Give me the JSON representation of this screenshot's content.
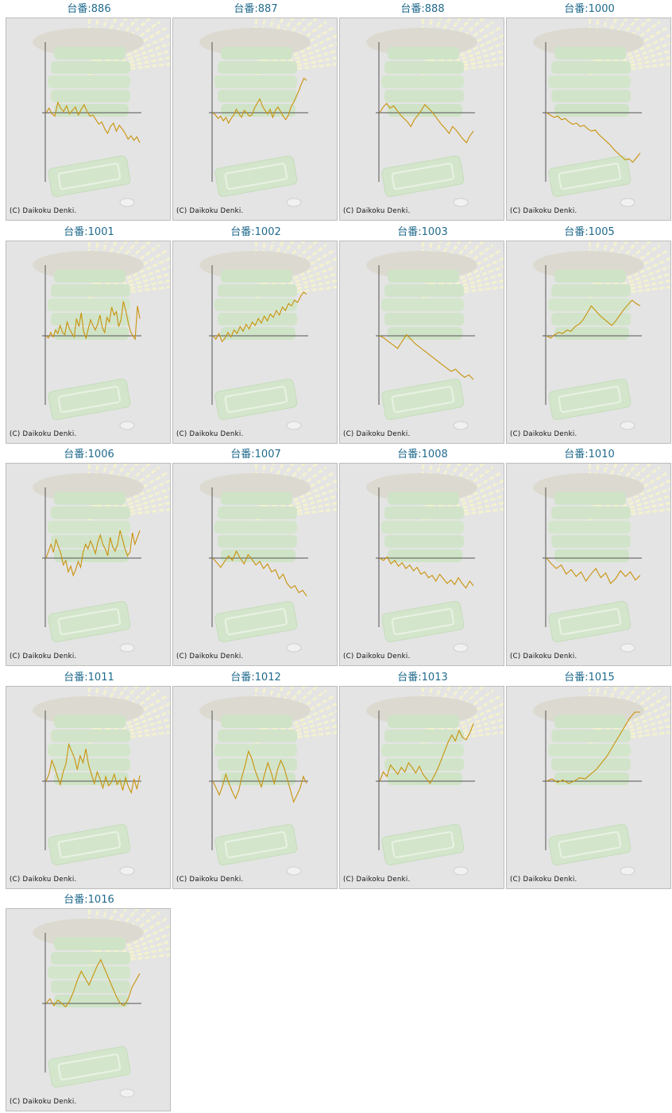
{
  "copyright": "(C) Daikoku Denki.",
  "colors": {
    "title": "#1f6a8c",
    "line": "#c9920a",
    "panel": "#e4e4e4",
    "axis": "#555555"
  },
  "graphs": [
    {
      "title": "台番:886",
      "values": [
        0,
        4,
        -1,
        -3,
        9,
        4,
        1,
        6,
        -1,
        2,
        5,
        -2,
        3,
        7,
        1,
        -3,
        -2,
        -6,
        -10,
        -8,
        -14,
        -18,
        -12,
        -9,
        -16,
        -11,
        -14,
        -18,
        -23,
        -20,
        -24,
        -21,
        -26
      ]
    },
    {
      "title": "台番:887",
      "values": [
        0,
        -2,
        -5,
        -3,
        -7,
        -4,
        -9,
        -5,
        -2,
        3,
        -1,
        -4,
        2,
        0,
        -3,
        -2,
        4,
        8,
        12,
        6,
        2,
        -1,
        3,
        -4,
        2,
        5,
        1,
        -3,
        -6,
        -2,
        5,
        9,
        14,
        19,
        25,
        30,
        28
      ]
    },
    {
      "title": "台番:888",
      "values": [
        0,
        5,
        8,
        4,
        6,
        2,
        -2,
        -5,
        -8,
        -12,
        -6,
        -2,
        2,
        7,
        4,
        1,
        -3,
        -7,
        -11,
        -14,
        -18,
        -12,
        -15,
        -19,
        -23,
        -26,
        -20,
        -16
      ]
    },
    {
      "title": "台番:1000",
      "values": [
        0,
        -2,
        -4,
        -3,
        -6,
        -5,
        -8,
        -10,
        -9,
        -12,
        -11,
        -14,
        -16,
        -15,
        -19,
        -22,
        -25,
        -28,
        -32,
        -35,
        -38,
        -41,
        -40,
        -43,
        -39,
        -35
      ]
    },
    {
      "title": "台番:1001",
      "values": [
        0,
        -2,
        3,
        -1,
        5,
        2,
        9,
        3,
        1,
        12,
        6,
        2,
        -1,
        15,
        8,
        20,
        4,
        -2,
        6,
        14,
        9,
        5,
        10,
        18,
        7,
        3,
        16,
        12,
        25,
        18,
        21,
        8,
        14,
        30,
        22,
        12,
        4,
        0,
        -3,
        26,
        15
      ]
    },
    {
      "title": "台番:1002",
      "values": [
        0,
        -3,
        2,
        -5,
        -2,
        3,
        -1,
        5,
        2,
        8,
        4,
        10,
        6,
        12,
        9,
        15,
        11,
        17,
        13,
        19,
        16,
        22,
        18,
        25,
        22,
        28,
        26,
        31,
        29,
        34,
        38,
        36
      ]
    },
    {
      "title": "台番:1003",
      "values": [
        0,
        -2,
        -5,
        -8,
        -11,
        -5,
        1,
        -3,
        -7,
        -10,
        -13,
        -16,
        -19,
        -22,
        -25,
        -28,
        -31,
        -29,
        -33,
        -36,
        -34,
        -38
      ]
    },
    {
      "title": "台番:1005",
      "values": [
        0,
        -2,
        1,
        3,
        2,
        5,
        4,
        8,
        10,
        14,
        20,
        26,
        22,
        18,
        15,
        12,
        9,
        13,
        18,
        23,
        27,
        31,
        28,
        26
      ]
    },
    {
      "title": "台番:1006",
      "values": [
        0,
        6,
        12,
        5,
        16,
        10,
        4,
        -6,
        -2,
        -12,
        -7,
        -15,
        -10,
        -3,
        -8,
        5,
        12,
        8,
        15,
        10,
        4,
        14,
        20,
        12,
        8,
        2,
        18,
        10,
        6,
        12,
        24,
        16,
        8,
        2,
        5,
        22,
        12,
        18,
        24
      ]
    },
    {
      "title": "台番:1007",
      "values": [
        0,
        -4,
        -8,
        -3,
        2,
        -2,
        6,
        0,
        -5,
        3,
        -1,
        -6,
        -3,
        -9,
        -5,
        -12,
        -10,
        -18,
        -14,
        -22,
        -26,
        -24,
        -30,
        -28,
        -33
      ]
    },
    {
      "title": "台番:1008",
      "values": [
        0,
        -2,
        1,
        -5,
        -2,
        -7,
        -4,
        -9,
        -6,
        -11,
        -8,
        -14,
        -12,
        -17,
        -15,
        -20,
        -14,
        -18,
        -22,
        -19,
        -23,
        -17,
        -22,
        -26,
        -20,
        -24
      ]
    },
    {
      "title": "台番:1010",
      "values": [
        0,
        -5,
        -9,
        -6,
        -14,
        -10,
        -16,
        -12,
        -20,
        -14,
        -9,
        -17,
        -13,
        -22,
        -18,
        -11,
        -16,
        -12,
        -19,
        -15
      ]
    },
    {
      "title": "台番:1011",
      "values": [
        0,
        6,
        18,
        12,
        4,
        -3,
        8,
        15,
        32,
        26,
        20,
        10,
        22,
        16,
        28,
        14,
        6,
        -2,
        8,
        2,
        -6,
        4,
        -4,
        -1,
        6,
        -3,
        1,
        -8,
        3,
        -5,
        -10,
        2,
        -7,
        5
      ]
    },
    {
      "title": "台番:1012",
      "values": [
        0,
        -6,
        -12,
        -4,
        6,
        -2,
        -9,
        -15,
        -8,
        4,
        14,
        26,
        20,
        10,
        2,
        -5,
        6,
        16,
        8,
        -2,
        10,
        18,
        12,
        2,
        -8,
        -18,
        -12,
        -6,
        4,
        -2
      ]
    },
    {
      "title": "台番:1013",
      "values": [
        0,
        8,
        4,
        14,
        10,
        6,
        12,
        8,
        16,
        12,
        7,
        13,
        6,
        2,
        -2,
        4,
        10,
        18,
        26,
        34,
        40,
        35,
        44,
        38,
        36,
        42,
        50
      ]
    },
    {
      "title": "台番:1015",
      "values": [
        0,
        2,
        -1,
        1,
        -2,
        0,
        3,
        2,
        6,
        10,
        16,
        22,
        30,
        38,
        46,
        54,
        62,
        70
      ]
    },
    {
      "title": "台番:1016",
      "values": [
        0,
        4,
        -2,
        3,
        0,
        -3,
        2,
        10,
        20,
        28,
        22,
        16,
        24,
        32,
        38,
        30,
        22,
        14,
        6,
        0,
        -2,
        4,
        14,
        20,
        26
      ]
    }
  ]
}
